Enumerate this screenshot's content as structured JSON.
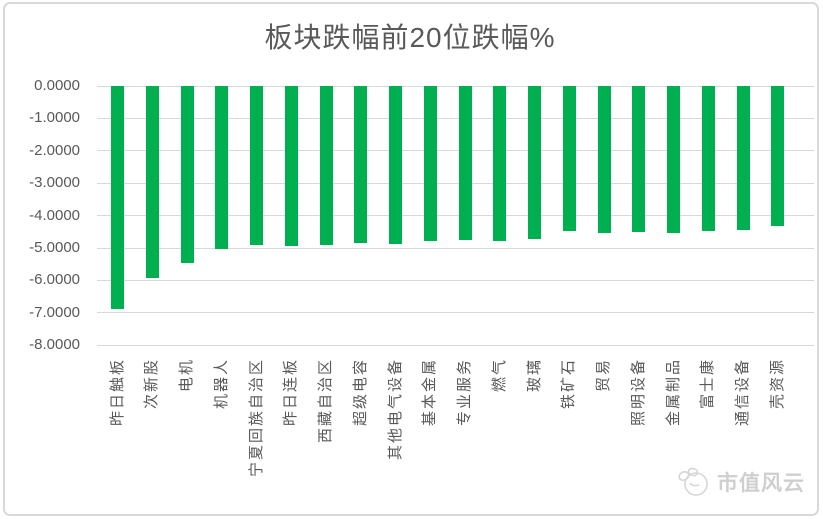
{
  "chart_data": {
    "type": "bar",
    "title": "板块跌幅前20位跌幅%",
    "categories": [
      "昨日触板",
      "次新股",
      "电机",
      "机器人",
      "宁夏回族自治区",
      "昨日连板",
      "西藏自治区",
      "超级电容",
      "其他电气设备",
      "基本金属",
      "专业服务",
      "燃气",
      "玻璃",
      "铁矿石",
      "贸易",
      "照明设备",
      "金属制品",
      "富士康",
      "通信设备",
      "壳资源"
    ],
    "values": [
      -6.88,
      -5.93,
      -5.45,
      -5.03,
      -4.9,
      -4.93,
      -4.92,
      -4.85,
      -4.89,
      -4.79,
      -4.74,
      -4.78,
      -4.73,
      -4.48,
      -4.55,
      -4.51,
      -4.54,
      -4.48,
      -4.43,
      -4.33
    ],
    "xlabel": "",
    "ylabel": "",
    "ylim": [
      -8,
      0
    ],
    "ytick_labels": [
      "0.0000",
      "-1.0000",
      "-2.0000",
      "-3.0000",
      "-4.0000",
      "-5.0000",
      "-6.0000",
      "-7.0000",
      "-8.0000"
    ],
    "grid": true,
    "legend": false,
    "bar_color": "#00B050"
  },
  "watermark": {
    "text": "市值风云"
  },
  "colors": {
    "bar": "#00B050",
    "grid": "#D9D9D9",
    "text": "#595959",
    "frame_border": "#D9D9D9",
    "watermark": "#CFCFCF"
  }
}
